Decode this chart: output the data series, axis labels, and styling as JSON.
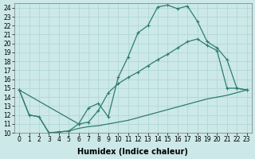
{
  "xlabel": "Humidex (Indice chaleur)",
  "bg_color": "#cce8e8",
  "grid_color": "#b0d8d8",
  "line_color": "#2e7d6e",
  "xlim": [
    -0.5,
    23.5
  ],
  "ylim": [
    10,
    24.5
  ],
  "yticks": [
    10,
    11,
    12,
    13,
    14,
    15,
    16,
    17,
    18,
    19,
    20,
    21,
    22,
    23,
    24
  ],
  "xticks": [
    0,
    1,
    2,
    3,
    4,
    5,
    6,
    7,
    8,
    9,
    10,
    11,
    12,
    13,
    14,
    15,
    16,
    17,
    18,
    19,
    20,
    21,
    22,
    23
  ],
  "top_x": [
    0,
    1,
    2,
    3,
    4,
    5,
    6,
    7,
    8,
    9,
    10,
    11,
    12,
    13,
    14,
    15,
    16,
    17,
    18,
    19,
    20,
    21,
    22,
    23
  ],
  "top_y": [
    14.8,
    12.0,
    11.8,
    10.0,
    10.1,
    10.2,
    11.0,
    12.8,
    13.3,
    11.8,
    16.2,
    18.5,
    21.2,
    22.0,
    24.1,
    24.3,
    23.9,
    24.2,
    22.5,
    20.2,
    19.5,
    18.2,
    15.0,
    14.8
  ],
  "mid_x": [
    0,
    6,
    7,
    8,
    9,
    10,
    11,
    12,
    13,
    14,
    15,
    16,
    17,
    18,
    19,
    20,
    21,
    22,
    23
  ],
  "mid_y": [
    14.8,
    11.0,
    11.2,
    12.5,
    14.5,
    15.5,
    16.2,
    16.8,
    17.5,
    18.2,
    18.8,
    19.5,
    20.2,
    20.5,
    19.8,
    19.2,
    15.0,
    15.0,
    14.8
  ],
  "bot_x": [
    0,
    1,
    2,
    3,
    4,
    5,
    6,
    7,
    8,
    9,
    10,
    11,
    12,
    13,
    14,
    15,
    16,
    17,
    18,
    19,
    20,
    21,
    22,
    23
  ],
  "bot_y": [
    14.8,
    12.0,
    11.8,
    10.0,
    10.1,
    10.2,
    10.5,
    10.7,
    10.8,
    11.0,
    11.2,
    11.4,
    11.7,
    12.0,
    12.3,
    12.6,
    12.9,
    13.2,
    13.5,
    13.8,
    14.0,
    14.2,
    14.5,
    14.8
  ],
  "ticker_fontsize": 5.5,
  "label_fontsize": 7
}
